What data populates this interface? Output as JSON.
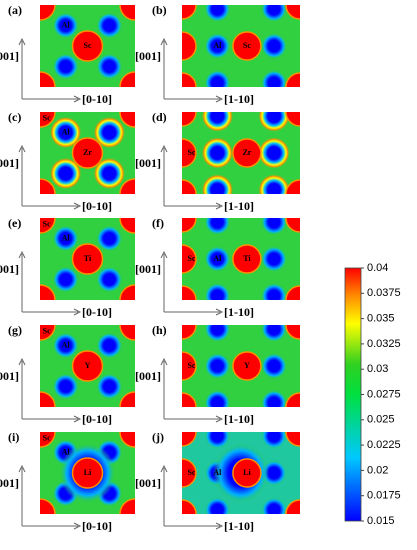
{
  "panels": [
    {
      "label": "(a)",
      "y_axis": "[001]",
      "x_axis": "[0-10]",
      "atoms": [
        "Al",
        "Sc"
      ]
    },
    {
      "label": "(b)",
      "y_axis": "[001]",
      "x_axis": "[1-10]",
      "atoms": [
        "Al",
        "Sc"
      ]
    },
    {
      "label": "(c)",
      "y_axis": "[001]",
      "x_axis": "[0-10]",
      "atoms": [
        "Sc",
        "Al",
        "Zr"
      ]
    },
    {
      "label": "(d)",
      "y_axis": "[001]",
      "x_axis": "[1-10]",
      "atoms": [
        "Sc",
        "Zr"
      ]
    },
    {
      "label": "(e)",
      "y_axis": "[001]",
      "x_axis": "[0-10]",
      "atoms": [
        "Sc",
        "Al",
        "Ti"
      ]
    },
    {
      "label": "(f)",
      "y_axis": "[001]",
      "x_axis": "[1-10]",
      "atoms": [
        "Sc",
        "Al",
        "Ti"
      ]
    },
    {
      "label": "(g)",
      "y_axis": "[001]",
      "x_axis": "[0-10]",
      "atoms": [
        "Sc",
        "Al",
        "Y"
      ]
    },
    {
      "label": "(h)",
      "y_axis": "[001]",
      "x_axis": "[1-10]",
      "atoms": [
        "Sc",
        "Y"
      ]
    },
    {
      "label": "(i)",
      "y_axis": "[001]",
      "x_axis": "[0-10]",
      "atoms": [
        "Sc",
        "Al",
        "Li"
      ]
    },
    {
      "label": "(j)",
      "y_axis": "[001]",
      "x_axis": "[1-10]",
      "atoms": [
        "Sc",
        "Al",
        "Li"
      ]
    }
  ],
  "colorbar": {
    "ylim": [
      0.015,
      0.04
    ],
    "ticks": [
      0.04,
      0.0375,
      0.035,
      0.0325,
      0.03,
      0.0275,
      0.025,
      0.0225,
      0.02,
      0.0175,
      0.015
    ]
  }
}
